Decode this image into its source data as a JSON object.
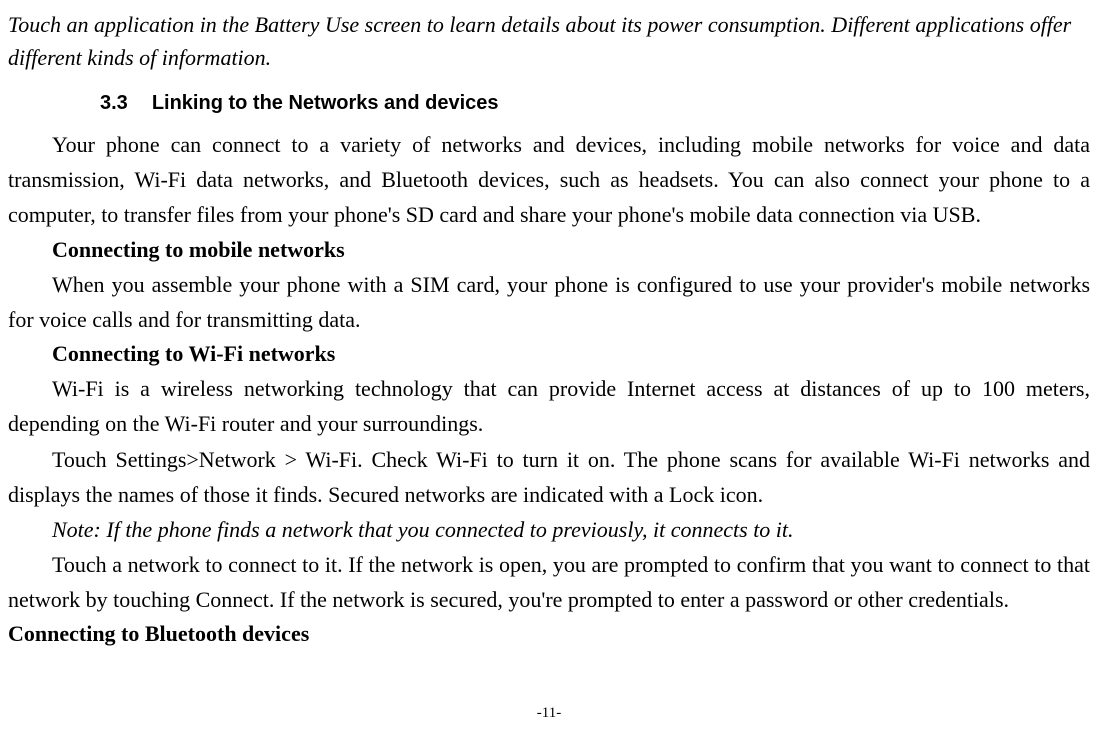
{
  "intro": "Touch an application in the Battery Use screen to learn details about its power consumption. Different applications offer different kinds of information.",
  "section": {
    "number": "3.3",
    "title": "Linking to the Networks and devices"
  },
  "para_overview": "Your phone can connect to a variety of networks and devices, including mobile networks for voice and data transmission, Wi-Fi data networks, and Bluetooth devices, such as headsets. You can also connect your phone to a computer, to transfer files from your phone's SD card and share your phone's mobile data connection via USB.",
  "sub_mobile": "Connecting to mobile networks",
  "para_mobile": " When you assemble your phone with a SIM card, your phone is configured to use your provider's mobile networks for voice calls and for transmitting data.",
  "sub_wifi": "Connecting to Wi-Fi networks",
  "para_wifi1": "Wi-Fi is a wireless networking technology that can provide Internet access at distances of up to 100 meters, depending on the Wi-Fi router and your surroundings.",
  "para_wifi2": "Touch Settings>Network > Wi-Fi. Check Wi-Fi to turn it on. The phone scans for available Wi-Fi networks and displays the names of those it finds. Secured networks are indicated with a Lock icon.",
  "note": "Note: If the phone finds a network that you connected to previously, it connects to it.",
  "para_wifi3": "Touch a network to connect to it. If the network is open, you are prompted to confirm that you want to connect to that network by touching Connect. If the network is secured, you're prompted to enter a password or other credentials.",
  "sub_bluetooth": "Connecting to Bluetooth devices",
  "page_number": "-11-"
}
